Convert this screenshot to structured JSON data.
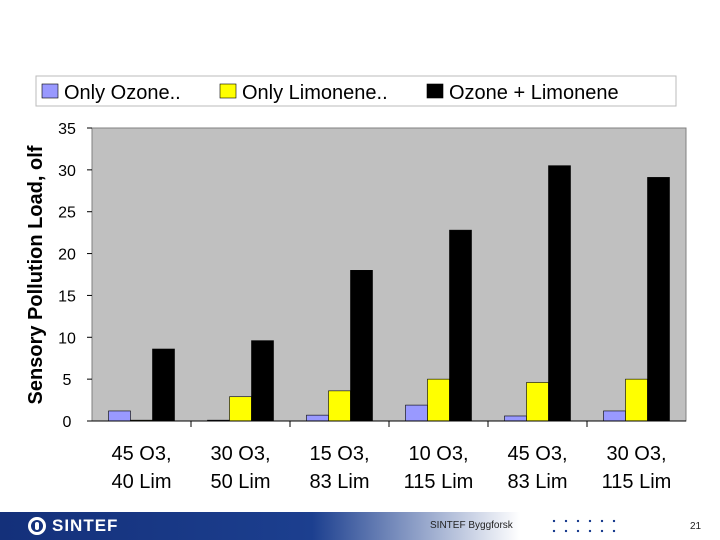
{
  "chart_data": {
    "type": "bar",
    "ylabel": "Sensory Pollution Load, olf",
    "ylim": [
      0,
      35
    ],
    "yticks": [
      0,
      5,
      10,
      15,
      20,
      25,
      30,
      35
    ],
    "grid": false,
    "legend_position": "top",
    "categories": [
      [
        "45 O3,",
        "40 Lim"
      ],
      [
        "30 O3,",
        "50 Lim"
      ],
      [
        "15 O3,",
        "83 Lim"
      ],
      [
        "10 O3,",
        "115 Lim"
      ],
      [
        "45 O3,",
        "83 Lim"
      ],
      [
        "30 O3,",
        "115 Lim"
      ]
    ],
    "series": [
      {
        "name": "Only Ozone..",
        "color": "#9999ff",
        "values": [
          1.2,
          0.1,
          0.7,
          1.9,
          0.6,
          1.2
        ]
      },
      {
        "name": "Only Limonene..",
        "color": "#ffff00",
        "values": [
          0.1,
          2.9,
          3.6,
          5.0,
          4.6,
          5.0
        ]
      },
      {
        "name": "Ozone + Limonene",
        "color": "#000000",
        "values": [
          8.6,
          9.6,
          18.0,
          22.8,
          30.5,
          29.1
        ]
      }
    ]
  },
  "footer": {
    "brand": "SINTEF",
    "org": "SINTEF Byggforsk",
    "page": "21"
  }
}
